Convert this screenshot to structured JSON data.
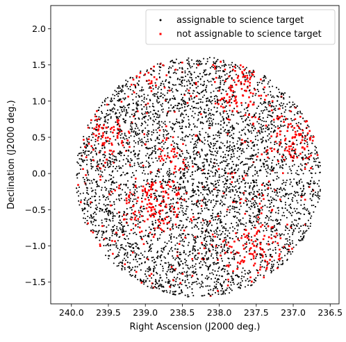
{
  "chart_data": {
    "type": "scatter",
    "title": "",
    "xlabel": "Right Ascension (J2000 deg.)",
    "ylabel": "Declination (J2000 deg.)",
    "xlim": [
      240.28,
      236.38
    ],
    "ylim": [
      -1.8,
      2.32
    ],
    "x_inverted": true,
    "xticks": [
      240.0,
      239.5,
      239.0,
      238.5,
      238.0,
      237.5,
      237.0,
      236.5
    ],
    "xtick_labels": [
      "240.0",
      "239.5",
      "239.0",
      "238.5",
      "238.0",
      "237.5",
      "237.0",
      "236.5"
    ],
    "yticks": [
      -1.5,
      -1.0,
      -0.5,
      0.0,
      0.5,
      1.0,
      1.5,
      2.0
    ],
    "ytick_labels": [
      "−1.5",
      "−1.0",
      "−0.5",
      "0.0",
      "0.5",
      "1.0",
      "1.5",
      "2.0"
    ],
    "grid": false,
    "legend_position": "upper-right",
    "field": {
      "center_ra": 238.28,
      "center_dec": -0.05,
      "radius": 1.66,
      "central_hole_radius": 0.07
    },
    "series": [
      {
        "name": "assignable to science target",
        "marker": "circle",
        "color": "#000000",
        "count_estimate": 5000
      },
      {
        "name": "not assignable to science target",
        "marker": "square",
        "color": "#ff0000",
        "count_estimate": 1100
      }
    ],
    "red_clusters": [
      {
        "ra": 239.05,
        "dec": 1.36,
        "spread": 0.11
      },
      {
        "ra": 238.65,
        "dec": 0.22,
        "spread": 0.13
      },
      {
        "ra": 239.52,
        "dec": 0.55,
        "spread": 0.16
      },
      {
        "ra": 237.0,
        "dec": 0.45,
        "spread": 0.18
      },
      {
        "ra": 237.7,
        "dec": 1.1,
        "spread": 0.2
      },
      {
        "ra": 237.55,
        "dec": -1.1,
        "spread": 0.2
      },
      {
        "ra": 238.9,
        "dec": -0.4,
        "spread": 0.22
      }
    ]
  },
  "legend": {
    "entries": [
      "assignable to science target",
      "not assignable to science target"
    ]
  }
}
